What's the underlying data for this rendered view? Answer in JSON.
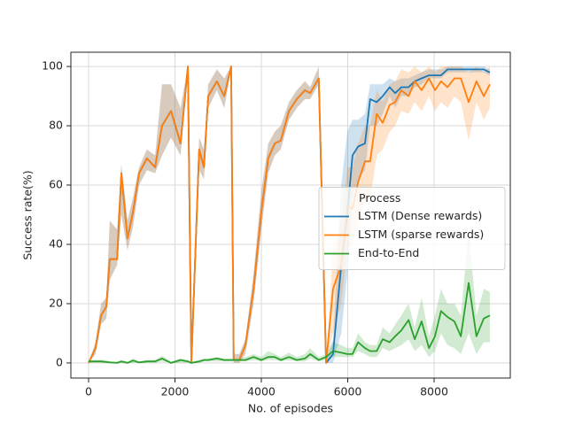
{
  "chart_data": {
    "type": "line",
    "xlabel": "No. of episodes",
    "ylabel": "Success rate(%)",
    "xlim": [
      -410,
      9764
    ],
    "ylim": [
      -5.1,
      104.8
    ],
    "xticks": [
      0,
      2000,
      4000,
      6000,
      8000
    ],
    "yticks": [
      0,
      20,
      40,
      60,
      80,
      100
    ],
    "grid": true,
    "legend": "center right",
    "legend_title": "Process",
    "x": [
      0,
      160,
      290,
      410,
      490,
      660,
      760,
      900,
      1030,
      1170,
      1350,
      1540,
      1700,
      1910,
      2130,
      2300,
      2380,
      2560,
      2670,
      2770,
      2970,
      3140,
      3300,
      3360,
      3490,
      3630,
      3820,
      4000,
      4160,
      4310,
      4450,
      4640,
      4820,
      5010,
      5130,
      5330,
      5500,
      5660,
      5850,
      5990,
      6110,
      6240,
      6400,
      6520,
      6670,
      6810,
      6970,
      7100,
      7240,
      7410,
      7550,
      7710,
      7880,
      8020,
      8160,
      8310,
      8470,
      8620,
      8800,
      8980,
      9150,
      9290
    ],
    "series": [
      {
        "name": "LSTM (Dense rewards)",
        "color": "#1f77b4",
        "values": [
          0,
          5,
          16,
          19,
          35,
          35,
          64,
          42,
          51,
          64,
          69,
          66,
          80,
          85,
          74,
          100,
          0,
          72,
          66,
          90,
          95,
          90,
          100,
          1,
          1,
          6,
          25,
          51,
          69,
          74,
          75,
          85,
          89,
          92,
          91,
          96,
          0,
          3,
          33,
          50,
          70,
          73,
          74,
          89,
          88,
          90,
          93,
          91,
          93,
          93,
          95,
          96,
          97,
          97,
          97,
          99,
          99,
          99,
          99,
          99,
          99,
          98
        ],
        "lower": [
          0,
          3,
          13,
          15,
          28,
          33,
          50,
          38,
          46,
          60,
          65,
          64,
          70,
          76,
          70,
          99,
          0,
          65,
          62,
          86,
          92,
          86,
          99,
          0,
          0,
          3,
          20,
          45,
          64,
          70,
          72,
          82,
          86,
          89,
          89,
          94,
          0,
          0,
          10,
          30,
          55,
          62,
          65,
          80,
          80,
          84,
          90,
          86,
          90,
          90,
          93,
          94,
          96,
          96,
          96,
          98,
          98,
          98,
          98,
          98,
          98,
          97
        ],
        "upper": [
          0,
          7,
          20,
          22,
          48,
          45,
          67,
          48,
          56,
          66,
          72,
          70,
          94,
          94,
          86,
          100,
          0,
          76,
          72,
          94,
          99,
          96,
          100,
          3,
          3,
          8,
          30,
          58,
          74,
          78,
          80,
          88,
          92,
          95,
          93,
          100,
          0,
          8,
          60,
          78,
          82,
          82,
          84,
          94,
          94,
          94,
          96,
          95,
          96,
          96,
          97,
          98,
          99,
          99,
          99,
          100,
          100,
          100,
          100,
          100,
          100,
          99
        ]
      },
      {
        "name": "LSTM (sparse rewards)",
        "color": "#ff7f0e",
        "values": [
          0,
          5,
          16,
          19,
          35,
          35,
          64,
          42,
          51,
          64,
          69,
          66,
          80,
          85,
          74,
          100,
          0,
          72,
          66,
          90,
          95,
          90,
          100,
          1,
          1,
          6,
          25,
          51,
          69,
          74,
          75,
          85,
          89,
          92,
          91,
          96,
          0,
          25,
          33,
          53,
          52,
          61,
          68,
          68,
          84,
          81,
          87,
          88,
          92,
          90,
          95,
          92,
          96,
          92,
          95,
          93,
          96,
          96,
          88,
          95,
          90,
          94
        ],
        "lower": [
          0,
          3,
          13,
          15,
          28,
          33,
          50,
          38,
          46,
          60,
          65,
          64,
          70,
          76,
          70,
          99,
          0,
          65,
          62,
          86,
          92,
          86,
          99,
          0,
          0,
          3,
          20,
          45,
          64,
          70,
          72,
          82,
          86,
          89,
          89,
          94,
          0,
          10,
          20,
          38,
          40,
          48,
          55,
          55,
          70,
          72,
          78,
          80,
          85,
          84,
          88,
          85,
          90,
          85,
          88,
          86,
          90,
          88,
          75,
          88,
          82,
          86
        ],
        "upper": [
          0,
          7,
          20,
          22,
          48,
          45,
          67,
          48,
          56,
          66,
          72,
          70,
          94,
          94,
          86,
          100,
          0,
          76,
          72,
          94,
          99,
          96,
          100,
          3,
          3,
          8,
          30,
          58,
          74,
          78,
          80,
          88,
          92,
          95,
          93,
          100,
          0,
          38,
          48,
          66,
          66,
          74,
          80,
          80,
          92,
          88,
          94,
          95,
          99,
          98,
          100,
          98,
          100,
          98,
          100,
          100,
          100,
          100,
          98,
          100,
          98,
          100
        ]
      },
      {
        "name": "End-to-End",
        "color": "#2ca02c",
        "values": [
          0.5,
          0.5,
          0.5,
          0.3,
          0.2,
          0,
          0.5,
          0,
          0.8,
          0.2,
          0.5,
          0.5,
          1.5,
          0,
          1,
          0.5,
          0,
          0.5,
          1,
          1,
          1.5,
          1,
          1,
          1,
          1,
          1,
          2,
          1,
          2,
          2,
          1,
          2,
          1,
          1.5,
          3,
          1,
          2,
          4,
          3.5,
          3,
          3,
          7,
          5,
          4,
          4,
          8,
          7,
          9,
          11,
          14.5,
          8,
          14,
          5,
          9,
          17.5,
          15.5,
          14,
          9,
          27,
          9,
          15,
          16
        ],
        "lower": [
          0,
          0,
          0,
          0,
          0,
          0,
          0,
          0,
          0,
          0,
          0,
          0,
          0.5,
          0,
          0,
          0,
          0,
          0,
          0.5,
          0.5,
          0.5,
          0.5,
          0.5,
          0.5,
          0.5,
          0.5,
          1,
          0.5,
          1,
          1,
          0.5,
          1,
          0.5,
          0.5,
          1.5,
          0.5,
          1,
          2,
          2,
          2,
          2,
          4,
          3,
          2,
          2,
          5,
          4,
          5,
          6,
          8,
          4,
          6,
          2,
          4,
          10,
          6,
          5,
          3,
          10,
          3,
          7,
          7
        ],
        "upper": [
          1,
          1,
          1,
          1,
          0.5,
          0.5,
          1,
          0.5,
          1.5,
          0.5,
          1,
          1,
          2.5,
          0.5,
          1.5,
          1,
          0.5,
          1,
          1.5,
          1.5,
          2,
          1.5,
          1.5,
          1.5,
          1.5,
          2,
          3,
          2,
          4,
          3,
          2,
          3.5,
          2,
          3,
          5,
          2,
          3,
          7,
          6,
          5,
          5,
          10,
          7,
          6,
          6,
          12,
          10,
          13,
          16,
          20,
          12,
          22,
          9,
          16,
          25,
          20,
          20,
          16,
          45,
          16,
          25,
          24
        ]
      }
    ]
  }
}
